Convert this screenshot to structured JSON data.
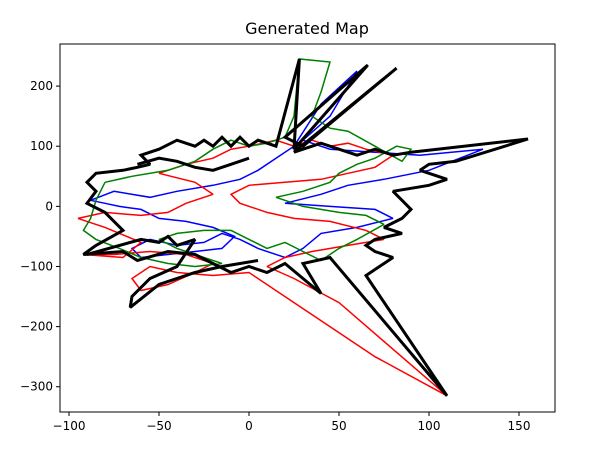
{
  "chart_data": {
    "type": "line",
    "title": "Generated Map",
    "xlabel": "",
    "ylabel": "",
    "xlim": [
      -105,
      170
    ],
    "ylim": [
      -342,
      270
    ],
    "xticks": [
      -100,
      -50,
      0,
      50,
      100,
      150
    ],
    "yticks": [
      -300,
      -200,
      -100,
      0,
      100,
      200
    ],
    "grid": false,
    "legend": "none",
    "series": [
      {
        "color": "#0000ff",
        "linewidth": 1.5,
        "points": [
          [
            -88,
            10
          ],
          [
            -75,
            25
          ],
          [
            -55,
            15
          ],
          [
            -40,
            25
          ],
          [
            -20,
            35
          ],
          [
            -5,
            45
          ],
          [
            5,
            60
          ],
          [
            15,
            80
          ],
          [
            25,
            100
          ],
          [
            40,
            170
          ],
          [
            60,
            225
          ],
          [
            45,
            150
          ],
          [
            30,
            110
          ],
          [
            45,
            95
          ],
          [
            70,
            90
          ],
          [
            95,
            85
          ],
          [
            130,
            95
          ],
          [
            100,
            60
          ],
          [
            75,
            45
          ],
          [
            55,
            35
          ],
          [
            40,
            20
          ],
          [
            20,
            5
          ],
          [
            45,
            0
          ],
          [
            70,
            -5
          ],
          [
            80,
            -20
          ],
          [
            60,
            -35
          ],
          [
            40,
            -45
          ],
          [
            30,
            -70
          ],
          [
            20,
            -85
          ],
          [
            5,
            -70
          ],
          [
            -5,
            -55
          ],
          [
            -15,
            -45
          ],
          [
            -25,
            -60
          ],
          [
            -40,
            -65
          ],
          [
            -55,
            -55
          ],
          [
            -65,
            -70
          ],
          [
            -60,
            -85
          ],
          [
            -45,
            -80
          ],
          [
            -30,
            -75
          ],
          [
            -15,
            -70
          ],
          [
            -8,
            -50
          ],
          [
            -20,
            -35
          ],
          [
            -35,
            -25
          ],
          [
            -50,
            -20
          ],
          [
            -60,
            -5
          ],
          [
            -72,
            0
          ],
          [
            -80,
            5
          ],
          [
            -88,
            10
          ]
        ]
      },
      {
        "color": "#ff0000",
        "linewidth": 1.5,
        "points": [
          [
            -92,
            -80
          ],
          [
            -70,
            -85
          ],
          [
            -60,
            -60
          ],
          [
            -80,
            -35
          ],
          [
            -95,
            -20
          ],
          [
            -80,
            -10
          ],
          [
            -60,
            -15
          ],
          [
            -45,
            -10
          ],
          [
            -35,
            5
          ],
          [
            -20,
            20
          ],
          [
            -30,
            40
          ],
          [
            -50,
            55
          ],
          [
            -35,
            70
          ],
          [
            -20,
            80
          ],
          [
            -10,
            95
          ],
          [
            0,
            100
          ],
          [
            15,
            110
          ],
          [
            25,
            100
          ],
          [
            35,
            110
          ],
          [
            45,
            100
          ],
          [
            55,
            105
          ],
          [
            65,
            95
          ],
          [
            80,
            85
          ],
          [
            70,
            65
          ],
          [
            55,
            55
          ],
          [
            40,
            45
          ],
          [
            20,
            40
          ],
          [
            0,
            35
          ],
          [
            -10,
            20
          ],
          [
            -5,
            5
          ],
          [
            10,
            -10
          ],
          [
            25,
            -20
          ],
          [
            45,
            -25
          ],
          [
            65,
            -40
          ],
          [
            75,
            -55
          ],
          [
            55,
            -65
          ],
          [
            35,
            -75
          ],
          [
            20,
            -85
          ],
          [
            10,
            -100
          ],
          [
            25,
            -120
          ],
          [
            50,
            -160
          ],
          [
            110,
            -315
          ],
          [
            70,
            -250
          ],
          [
            30,
            -170
          ],
          [
            0,
            -110
          ],
          [
            -20,
            -115
          ],
          [
            -40,
            -110
          ],
          [
            -55,
            -100
          ],
          [
            -65,
            -120
          ],
          [
            -60,
            -140
          ],
          [
            -45,
            -130
          ],
          [
            -30,
            -110
          ],
          [
            -20,
            -95
          ],
          [
            -35,
            -80
          ],
          [
            -55,
            -75
          ],
          [
            -75,
            -80
          ],
          [
            -92,
            -80
          ]
        ]
      },
      {
        "color": "#008000",
        "linewidth": 1.5,
        "points": [
          [
            -80,
            40
          ],
          [
            -65,
            50
          ],
          [
            -45,
            60
          ],
          [
            -30,
            75
          ],
          [
            -20,
            95
          ],
          [
            -10,
            110
          ],
          [
            0,
            100
          ],
          [
            10,
            105
          ],
          [
            20,
            115
          ],
          [
            25,
            150
          ],
          [
            28,
            245
          ],
          [
            45,
            240
          ],
          [
            40,
            190
          ],
          [
            35,
            150
          ],
          [
            45,
            130
          ],
          [
            55,
            125
          ],
          [
            70,
            100
          ],
          [
            85,
            75
          ],
          [
            90,
            95
          ],
          [
            82,
            100
          ],
          [
            70,
            80
          ],
          [
            60,
            70
          ],
          [
            50,
            55
          ],
          [
            45,
            40
          ],
          [
            30,
            25
          ],
          [
            15,
            15
          ],
          [
            30,
            0
          ],
          [
            50,
            -10
          ],
          [
            65,
            -15
          ],
          [
            75,
            -30
          ],
          [
            60,
            -55
          ],
          [
            50,
            -70
          ],
          [
            40,
            -90
          ],
          [
            30,
            -75
          ],
          [
            20,
            -60
          ],
          [
            10,
            -70
          ],
          [
            0,
            -55
          ],
          [
            -10,
            -40
          ],
          [
            -25,
            -40
          ],
          [
            -40,
            -45
          ],
          [
            -50,
            -55
          ],
          [
            -40,
            -70
          ],
          [
            -25,
            -85
          ],
          [
            -15,
            -95
          ],
          [
            -30,
            -100
          ],
          [
            -45,
            -95
          ],
          [
            -60,
            -85
          ],
          [
            -72,
            -70
          ],
          [
            -85,
            -55
          ],
          [
            -92,
            -40
          ],
          [
            -88,
            -20
          ],
          [
            -85,
            10
          ],
          [
            -80,
            40
          ]
        ]
      },
      {
        "color": "#000000",
        "linewidth": 3.0,
        "points": [
          [
            -85,
            -65
          ],
          [
            -92,
            -80
          ],
          [
            -70,
            -75
          ],
          [
            -62,
            -90
          ],
          [
            -45,
            -75
          ],
          [
            -30,
            -80
          ],
          [
            -20,
            -95
          ],
          [
            -10,
            -110
          ],
          [
            0,
            -100
          ],
          [
            10,
            -110
          ],
          [
            20,
            -95
          ],
          [
            40,
            -145
          ],
          [
            30,
            -95
          ],
          [
            45,
            -85
          ],
          [
            110,
            -315
          ],
          [
            65,
            -115
          ],
          [
            75,
            -95
          ],
          [
            80,
            -85
          ],
          [
            70,
            -75
          ],
          [
            65,
            -65
          ],
          [
            70,
            -55
          ],
          [
            85,
            -45
          ],
          [
            75,
            -35
          ],
          [
            85,
            -20
          ],
          [
            90,
            -5
          ],
          [
            85,
            10
          ],
          [
            80,
            25
          ],
          [
            100,
            35
          ],
          [
            110,
            45
          ],
          [
            95,
            60
          ],
          [
            100,
            70
          ],
          [
            115,
            75
          ],
          [
            155,
            112
          ],
          [
            90,
            90
          ],
          [
            80,
            85
          ],
          [
            70,
            95
          ],
          [
            60,
            85
          ],
          [
            50,
            95
          ],
          [
            40,
            105
          ],
          [
            25,
            90
          ],
          [
            82,
            230
          ],
          [
            30,
            100
          ],
          [
            20,
            115
          ],
          [
            66,
            235
          ],
          [
            25,
            95
          ],
          [
            28,
            245
          ],
          [
            15,
            100
          ],
          [
            5,
            110
          ],
          [
            0,
            100
          ],
          [
            -5,
            115
          ],
          [
            -10,
            100
          ],
          [
            -15,
            115
          ],
          [
            -20,
            100
          ],
          [
            -25,
            110
          ],
          [
            -30,
            100
          ],
          [
            -40,
            110
          ],
          [
            -50,
            95
          ],
          [
            -60,
            85
          ],
          [
            -55,
            70
          ],
          [
            -62,
            65
          ],
          [
            -70,
            60
          ],
          [
            -85,
            55
          ],
          [
            -90,
            40
          ],
          [
            -85,
            25
          ],
          [
            -90,
            5
          ],
          [
            -80,
            -10
          ],
          [
            -75,
            -25
          ],
          [
            -70,
            -40
          ],
          [
            -85,
            -65
          ]
        ]
      },
      {
        "color": "#000000",
        "linewidth": 3.0,
        "points": [
          [
            -90,
            -80
          ],
          [
            -60,
            -55
          ],
          [
            -50,
            -60
          ],
          [
            -45,
            -50
          ],
          [
            -40,
            -65
          ],
          [
            -30,
            -55
          ],
          [
            -40,
            -100
          ],
          [
            -55,
            -120
          ],
          [
            -65,
            -150
          ],
          [
            -66,
            -168
          ],
          [
            -50,
            -130
          ],
          [
            -30,
            -110
          ],
          [
            -15,
            -100
          ],
          [
            -5,
            -95
          ],
          [
            5,
            -90
          ]
        ]
      },
      {
        "color": "#000000",
        "linewidth": 3.0,
        "points": [
          [
            -62,
            70
          ],
          [
            -50,
            80
          ],
          [
            -40,
            75
          ],
          [
            -30,
            65
          ],
          [
            -20,
            60
          ],
          [
            -10,
            70
          ],
          [
            0,
            80
          ]
        ]
      }
    ]
  }
}
